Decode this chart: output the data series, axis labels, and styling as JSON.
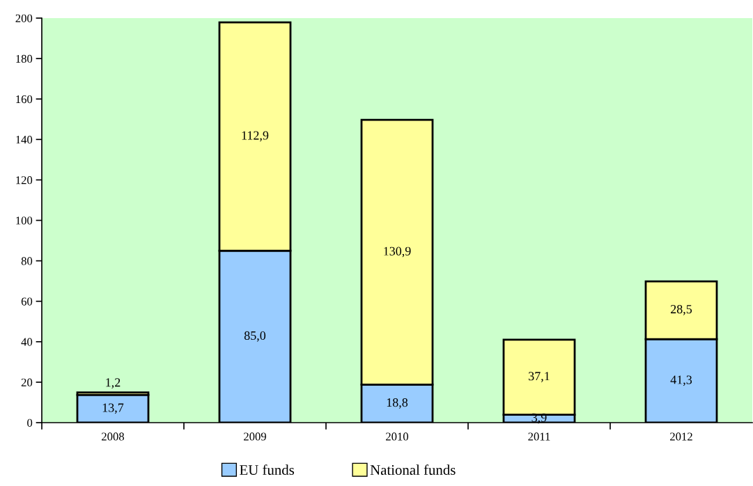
{
  "chart_data": {
    "type": "bar",
    "stacked": true,
    "categories": [
      "2008",
      "2009",
      "2010",
      "2011",
      "2012"
    ],
    "series": [
      {
        "name": "EU funds",
        "color": "#99ccff",
        "values": [
          13.7,
          85.0,
          18.8,
          3.9,
          41.3
        ],
        "value_labels": [
          "13,7",
          "85,0",
          "18,8",
          "3,9",
          "41,3"
        ]
      },
      {
        "name": "National funds",
        "color": "#ffff99",
        "values": [
          1.2,
          112.9,
          130.9,
          37.1,
          28.5
        ],
        "value_labels": [
          "1,2",
          "112,9",
          "130,9",
          "37,1",
          "28,5"
        ]
      }
    ],
    "ylim": [
      0,
      200
    ],
    "yticks": [
      0,
      20,
      40,
      60,
      80,
      100,
      120,
      140,
      160,
      180,
      200
    ],
    "grid": false,
    "legend": "bottom"
  }
}
